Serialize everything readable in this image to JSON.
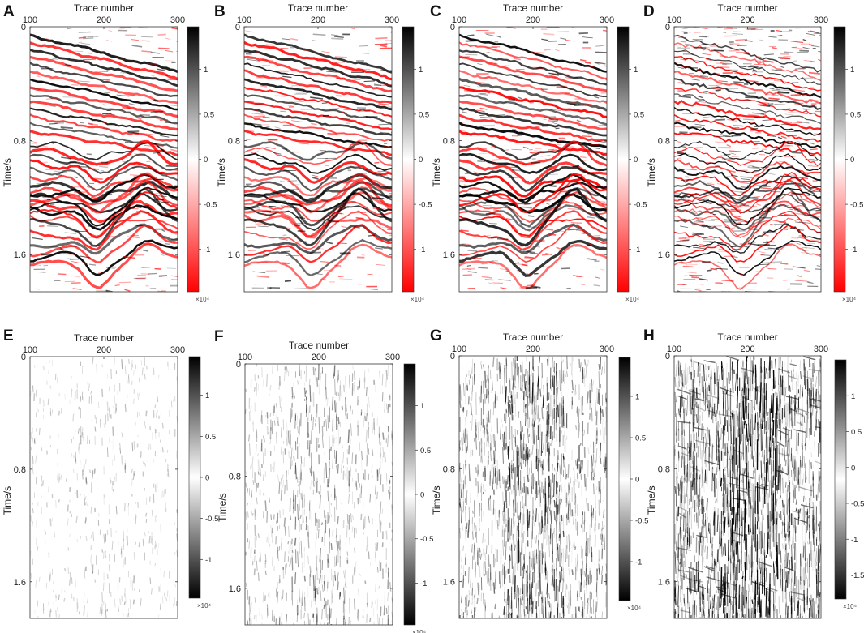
{
  "figure": {
    "x_axis_label": "Trace number",
    "y_axis_label": "Time/s",
    "x_ticks": [
      "100",
      "200",
      "300"
    ],
    "y_ticks": [
      "0",
      "0.8",
      "1.6"
    ],
    "colorbar_exponent": "×10⁴",
    "colors": {
      "positive": "#000000",
      "negative": "#ff0000",
      "zero": "#ffffff",
      "axis": "#333333"
    },
    "panels": [
      {
        "letter": "A",
        "colormap": "red-white-black",
        "colorbar_ticks": [
          "1",
          "0.5",
          "0",
          "-0.5",
          "-1"
        ]
      },
      {
        "letter": "B",
        "colormap": "red-white-black",
        "colorbar_ticks": [
          "1",
          "0.5",
          "0",
          "-0.5",
          "-1"
        ]
      },
      {
        "letter": "C",
        "colormap": "red-white-black",
        "colorbar_ticks": [
          "1",
          "0.5",
          "0",
          "-0.5",
          "-1"
        ]
      },
      {
        "letter": "D",
        "colormap": "red-white-black",
        "colorbar_ticks": [
          "1",
          "0.5",
          "0",
          "-0.5",
          "-1"
        ]
      },
      {
        "letter": "E",
        "colormap": "white-black",
        "colorbar_ticks": [
          "1",
          "0.5",
          "0",
          "-0.5",
          "-1"
        ]
      },
      {
        "letter": "F",
        "colormap": "white-black",
        "colorbar_ticks": [
          "1",
          "0.5",
          "0",
          "-0.5",
          "-1"
        ]
      },
      {
        "letter": "G",
        "colormap": "white-black",
        "colorbar_ticks": [
          "1",
          "0.5",
          "0",
          "-0.5",
          "-1"
        ]
      },
      {
        "letter": "H",
        "colormap": "white-black",
        "colorbar_ticks": [
          "1",
          "0.5",
          "0",
          "-0.5",
          "-1",
          "-1.5"
        ]
      }
    ]
  }
}
